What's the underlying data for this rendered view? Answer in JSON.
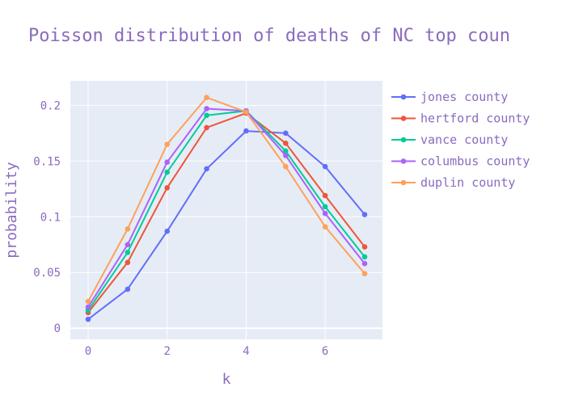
{
  "chart_data": {
    "type": "line",
    "title": "Poisson distribution of deaths of NC top coun",
    "xlabel": "k",
    "ylabel": "probability",
    "x": [
      0,
      1,
      2,
      3,
      4,
      5,
      6,
      7
    ],
    "xlim": [
      -0.45,
      7.45
    ],
    "ylim": [
      -0.01,
      0.222
    ],
    "xticks": [
      0,
      2,
      4,
      6
    ],
    "yticks": [
      0,
      0.05,
      0.1,
      0.15,
      0.2
    ],
    "ytick_labels": [
      "0",
      "0.05",
      "0.1",
      "0.15",
      "0.2"
    ],
    "grid": true,
    "legend_position": "right",
    "colors": {
      "text": "#8a6bbf",
      "plot_bg": "#e5ecf6",
      "grid": "#ffffff"
    },
    "series": [
      {
        "name": "jones county",
        "color": "#636efa",
        "values": [
          0.008,
          0.035,
          0.087,
          0.143,
          0.177,
          0.175,
          0.145,
          0.102
        ]
      },
      {
        "name": "hertford county",
        "color": "#ef553b",
        "values": [
          0.014,
          0.059,
          0.126,
          0.18,
          0.193,
          0.166,
          0.119,
          0.073
        ]
      },
      {
        "name": "vance county",
        "color": "#00cc96",
        "values": [
          0.016,
          0.068,
          0.14,
          0.191,
          0.195,
          0.159,
          0.109,
          0.064
        ]
      },
      {
        "name": "columbus county",
        "color": "#ab63fa",
        "values": [
          0.019,
          0.075,
          0.149,
          0.197,
          0.195,
          0.155,
          0.103,
          0.058
        ]
      },
      {
        "name": "duplin county",
        "color": "#ffa15a",
        "values": [
          0.024,
          0.089,
          0.165,
          0.207,
          0.194,
          0.145,
          0.091,
          0.049
        ]
      }
    ]
  }
}
